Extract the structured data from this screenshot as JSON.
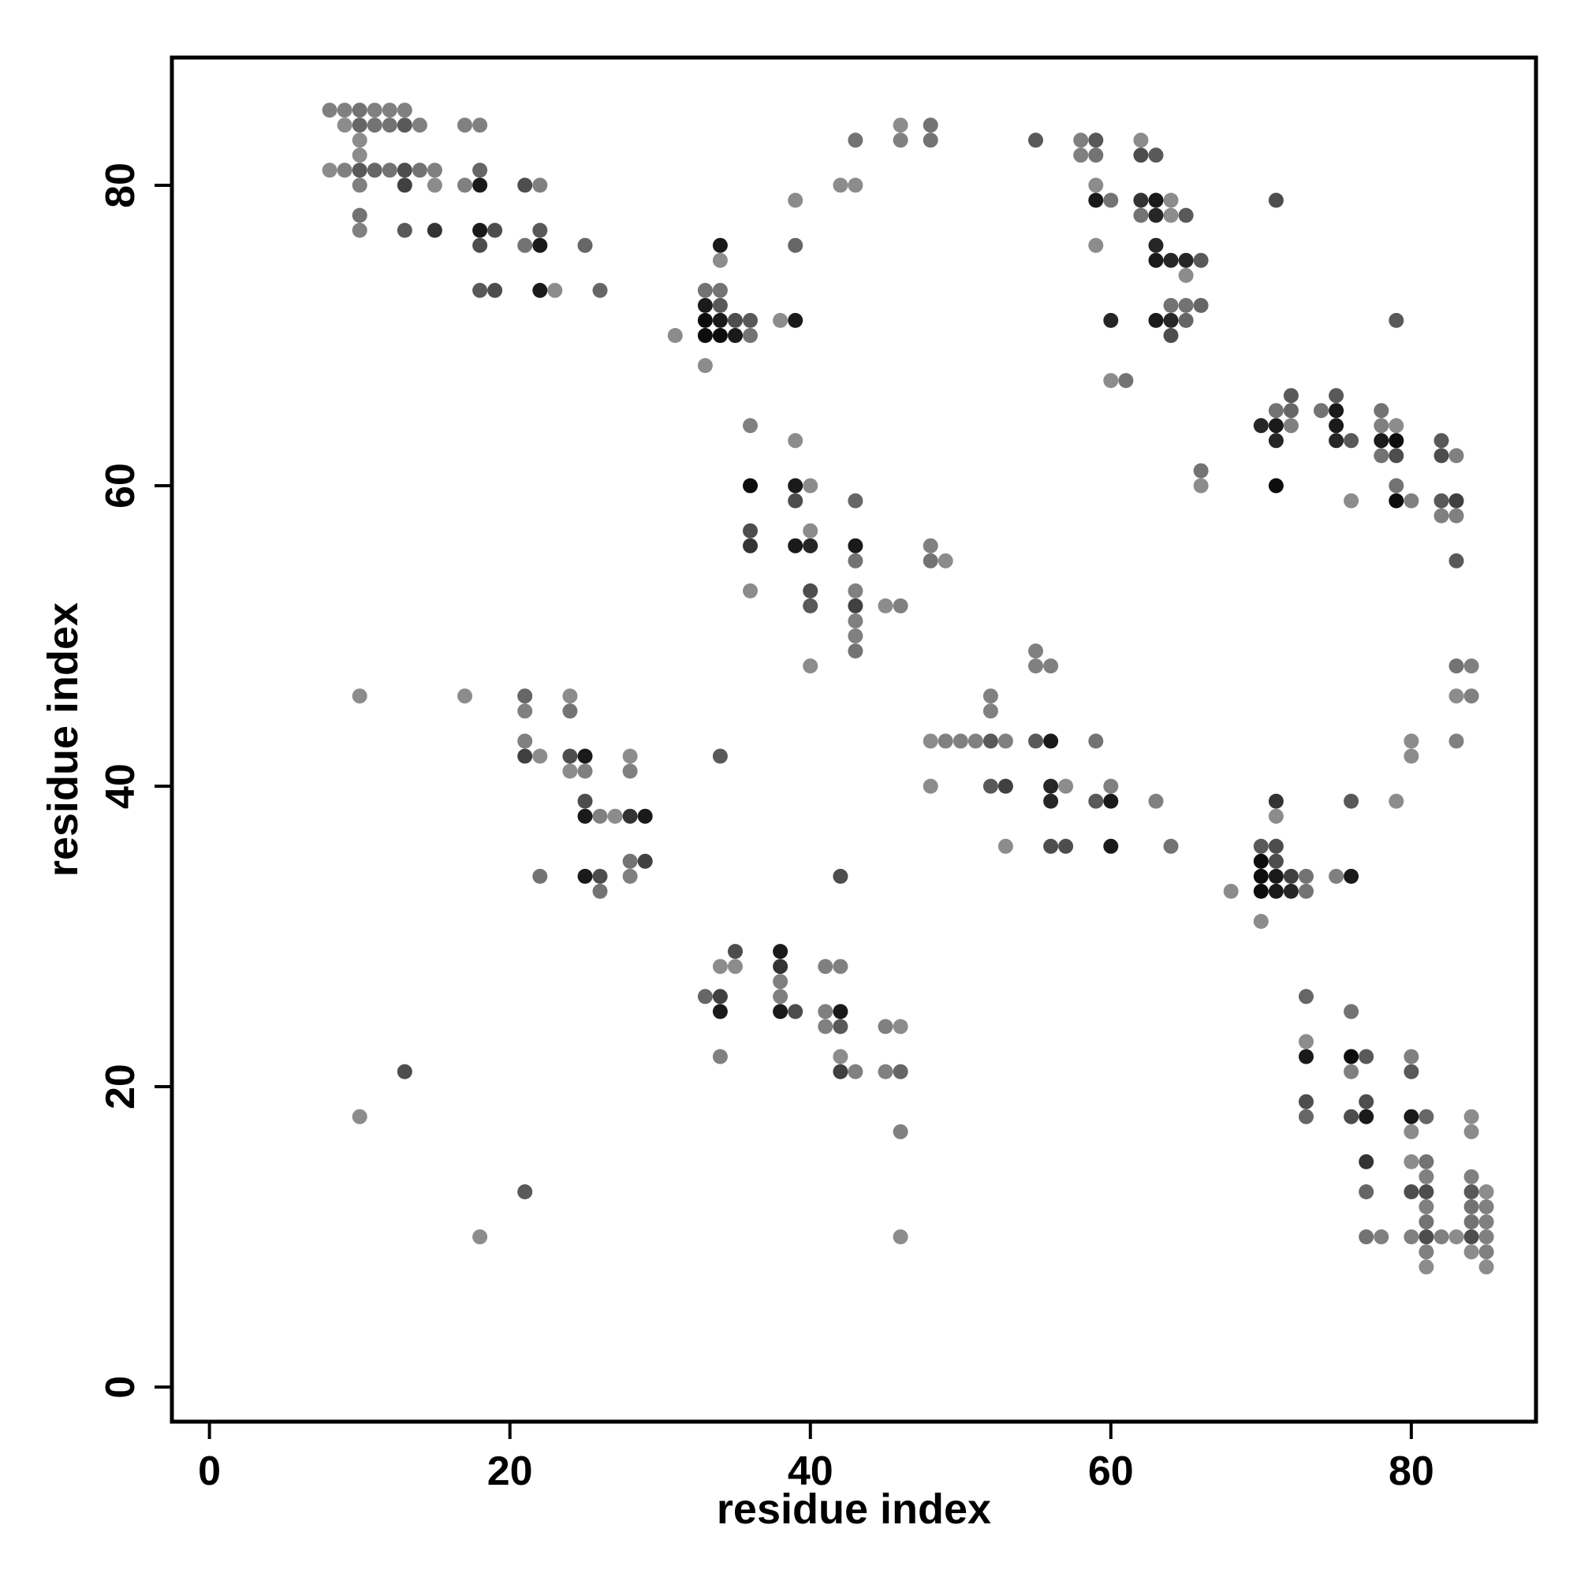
{
  "chart_data": {
    "type": "scatter",
    "title": "",
    "xlabel": "residue index",
    "ylabel": "residue index",
    "xlim": [
      -2.5,
      88.3
    ],
    "ylim": [
      -2.3,
      88.5
    ],
    "xticks": [
      0,
      20,
      40,
      60,
      80
    ],
    "yticks": [
      0,
      20,
      40,
      60,
      80
    ],
    "grid": false,
    "legend": "none",
    "color_scale": "grayscale; darker point = stronger contact",
    "points": [
      [
        8,
        85,
        0.5
      ],
      [
        9,
        85,
        0.5
      ],
      [
        10,
        85,
        0.45
      ],
      [
        11,
        85,
        0.5
      ],
      [
        12,
        85,
        0.5
      ],
      [
        13,
        85,
        0.5
      ],
      [
        9,
        84,
        0.55
      ],
      [
        10,
        84,
        0.4
      ],
      [
        11,
        84,
        0.45
      ],
      [
        12,
        84,
        0.45
      ],
      [
        13,
        84,
        0.35
      ],
      [
        14,
        84,
        0.5
      ],
      [
        17,
        84,
        0.5
      ],
      [
        18,
        84,
        0.5
      ],
      [
        10,
        83,
        0.55
      ],
      [
        10,
        82,
        0.55
      ],
      [
        8,
        81,
        0.55
      ],
      [
        9,
        81,
        0.5
      ],
      [
        10,
        81,
        0.35
      ],
      [
        11,
        81,
        0.4
      ],
      [
        12,
        81,
        0.45
      ],
      [
        13,
        81,
        0.3
      ],
      [
        14,
        81,
        0.45
      ],
      [
        15,
        81,
        0.5
      ],
      [
        18,
        81,
        0.4
      ],
      [
        10,
        80,
        0.5
      ],
      [
        13,
        80,
        0.25
      ],
      [
        15,
        80,
        0.55
      ],
      [
        17,
        80,
        0.5
      ],
      [
        18,
        80,
        0.1
      ],
      [
        21,
        80,
        0.3
      ],
      [
        22,
        80,
        0.5
      ],
      [
        10,
        78,
        0.45
      ],
      [
        10,
        77,
        0.5
      ],
      [
        13,
        77,
        0.35
      ],
      [
        15,
        77,
        0.2
      ],
      [
        18,
        77,
        0.1
      ],
      [
        19,
        77,
        0.3
      ],
      [
        22,
        77,
        0.35
      ],
      [
        18,
        76,
        0.3
      ],
      [
        21,
        76,
        0.45
      ],
      [
        22,
        76,
        0.1
      ],
      [
        25,
        76,
        0.4
      ],
      [
        18,
        73,
        0.35
      ],
      [
        19,
        73,
        0.3
      ],
      [
        22,
        73,
        0.1
      ],
      [
        23,
        73,
        0.55
      ],
      [
        26,
        73,
        0.4
      ],
      [
        10,
        46,
        0.55
      ],
      [
        17,
        46,
        0.55
      ],
      [
        21,
        46,
        0.4
      ],
      [
        24,
        46,
        0.55
      ],
      [
        21,
        45,
        0.5
      ],
      [
        24,
        45,
        0.45
      ],
      [
        21,
        43,
        0.5
      ],
      [
        21,
        42,
        0.25
      ],
      [
        22,
        42,
        0.55
      ],
      [
        24,
        42,
        0.3
      ],
      [
        25,
        42,
        0.1
      ],
      [
        28,
        42,
        0.55
      ],
      [
        24,
        41,
        0.55
      ],
      [
        25,
        41,
        0.5
      ],
      [
        28,
        41,
        0.5
      ],
      [
        25,
        39,
        0.3
      ],
      [
        25,
        38,
        0.1
      ],
      [
        26,
        38,
        0.5
      ],
      [
        27,
        38,
        0.55
      ],
      [
        28,
        38,
        0.2
      ],
      [
        29,
        38,
        0.1
      ],
      [
        28,
        35,
        0.45
      ],
      [
        29,
        35,
        0.25
      ],
      [
        22,
        34,
        0.45
      ],
      [
        25,
        34,
        0.1
      ],
      [
        26,
        34,
        0.3
      ],
      [
        28,
        34,
        0.5
      ],
      [
        26,
        33,
        0.45
      ],
      [
        13,
        21,
        0.3
      ],
      [
        10,
        18,
        0.55
      ],
      [
        21,
        13,
        0.35
      ],
      [
        18,
        10,
        0.55
      ],
      [
        31,
        70,
        0.55
      ],
      [
        33,
        73,
        0.45
      ],
      [
        34,
        73,
        0.45
      ],
      [
        33,
        72,
        0.1
      ],
      [
        34,
        72,
        0.35
      ],
      [
        33,
        71,
        0.05
      ],
      [
        34,
        71,
        0.1
      ],
      [
        35,
        71,
        0.3
      ],
      [
        36,
        71,
        0.35
      ],
      [
        38,
        71,
        0.55
      ],
      [
        39,
        71,
        0.1
      ],
      [
        33,
        70,
        0.05
      ],
      [
        34,
        70,
        0.05
      ],
      [
        35,
        70,
        0.1
      ],
      [
        36,
        70,
        0.45
      ],
      [
        33,
        68,
        0.55
      ],
      [
        34,
        76,
        0.1
      ],
      [
        34,
        75,
        0.55
      ],
      [
        39,
        76,
        0.4
      ],
      [
        39,
        79,
        0.55
      ],
      [
        36,
        64,
        0.5
      ],
      [
        39,
        63,
        0.55
      ],
      [
        36,
        60,
        0.05
      ],
      [
        39,
        60,
        0.1
      ],
      [
        40,
        60,
        0.55
      ],
      [
        39,
        59,
        0.3
      ],
      [
        36,
        57,
        0.3
      ],
      [
        40,
        57,
        0.55
      ],
      [
        36,
        56,
        0.2
      ],
      [
        39,
        56,
        0.1
      ],
      [
        40,
        56,
        0.15
      ],
      [
        43,
        59,
        0.4
      ],
      [
        43,
        56,
        0.1
      ],
      [
        43,
        55,
        0.45
      ],
      [
        48,
        56,
        0.5
      ],
      [
        48,
        55,
        0.45
      ],
      [
        49,
        55,
        0.55
      ],
      [
        36,
        53,
        0.55
      ],
      [
        40,
        53,
        0.3
      ],
      [
        43,
        53,
        0.5
      ],
      [
        40,
        52,
        0.35
      ],
      [
        43,
        52,
        0.25
      ],
      [
        45,
        52,
        0.55
      ],
      [
        46,
        52,
        0.5
      ],
      [
        43,
        51,
        0.5
      ],
      [
        43,
        50,
        0.5
      ],
      [
        43,
        49,
        0.45
      ],
      [
        40,
        48,
        0.55
      ],
      [
        42,
        80,
        0.55
      ],
      [
        43,
        80,
        0.55
      ],
      [
        43,
        83,
        0.45
      ],
      [
        46,
        84,
        0.55
      ],
      [
        48,
        84,
        0.45
      ],
      [
        46,
        83,
        0.5
      ],
      [
        48,
        83,
        0.45
      ],
      [
        34,
        42,
        0.35
      ],
      [
        34,
        28,
        0.55
      ],
      [
        35,
        29,
        0.3
      ],
      [
        35,
        28,
        0.55
      ],
      [
        38,
        29,
        0.1
      ],
      [
        38,
        28,
        0.2
      ],
      [
        38,
        27,
        0.5
      ],
      [
        38,
        26,
        0.5
      ],
      [
        33,
        26,
        0.4
      ],
      [
        34,
        26,
        0.25
      ],
      [
        34,
        25,
        0.1
      ],
      [
        38,
        25,
        0.1
      ],
      [
        39,
        25,
        0.3
      ],
      [
        34,
        22,
        0.5
      ],
      [
        41,
        28,
        0.5
      ],
      [
        42,
        28,
        0.5
      ],
      [
        41,
        25,
        0.5
      ],
      [
        42,
        25,
        0.1
      ],
      [
        41,
        24,
        0.5
      ],
      [
        42,
        24,
        0.35
      ],
      [
        42,
        22,
        0.55
      ],
      [
        42,
        21,
        0.25
      ],
      [
        43,
        21,
        0.5
      ],
      [
        42,
        34,
        0.3
      ],
      [
        45,
        24,
        0.5
      ],
      [
        46,
        24,
        0.55
      ],
      [
        45,
        21,
        0.5
      ],
      [
        46,
        21,
        0.4
      ],
      [
        46,
        17,
        0.5
      ],
      [
        46,
        10,
        0.55
      ],
      [
        55,
        83,
        0.35
      ],
      [
        58,
        83,
        0.5
      ],
      [
        59,
        83,
        0.35
      ],
      [
        58,
        82,
        0.5
      ],
      [
        59,
        82,
        0.45
      ],
      [
        59,
        80,
        0.55
      ],
      [
        59,
        79,
        0.1
      ],
      [
        60,
        79,
        0.45
      ],
      [
        59,
        76,
        0.55
      ],
      [
        62,
        83,
        0.55
      ],
      [
        62,
        82,
        0.3
      ],
      [
        63,
        82,
        0.35
      ],
      [
        62,
        79,
        0.2
      ],
      [
        63,
        79,
        0.1
      ],
      [
        64,
        79,
        0.55
      ],
      [
        62,
        78,
        0.45
      ],
      [
        63,
        78,
        0.15
      ],
      [
        64,
        78,
        0.55
      ],
      [
        65,
        78,
        0.35
      ],
      [
        63,
        76,
        0.15
      ],
      [
        63,
        75,
        0.1
      ],
      [
        64,
        75,
        0.15
      ],
      [
        65,
        75,
        0.15
      ],
      [
        66,
        75,
        0.35
      ],
      [
        65,
        74,
        0.55
      ],
      [
        64,
        72,
        0.45
      ],
      [
        65,
        72,
        0.45
      ],
      [
        66,
        72,
        0.4
      ],
      [
        60,
        71,
        0.15
      ],
      [
        63,
        71,
        0.1
      ],
      [
        64,
        71,
        0.15
      ],
      [
        65,
        71,
        0.4
      ],
      [
        64,
        70,
        0.3
      ],
      [
        60,
        67,
        0.55
      ],
      [
        61,
        67,
        0.45
      ],
      [
        71,
        79,
        0.3
      ],
      [
        66,
        61,
        0.45
      ],
      [
        66,
        60,
        0.55
      ],
      [
        70,
        64,
        0.15
      ],
      [
        71,
        65,
        0.45
      ],
      [
        72,
        66,
        0.35
      ],
      [
        71,
        64,
        0.1
      ],
      [
        72,
        65,
        0.4
      ],
      [
        72,
        64,
        0.5
      ],
      [
        71,
        63,
        0.15
      ],
      [
        71,
        60,
        0.05
      ],
      [
        74,
        65,
        0.45
      ],
      [
        75,
        66,
        0.35
      ],
      [
        75,
        65,
        0.1
      ],
      [
        75,
        64,
        0.1
      ],
      [
        75,
        63,
        0.15
      ],
      [
        76,
        63,
        0.35
      ],
      [
        76,
        59,
        0.55
      ],
      [
        78,
        65,
        0.45
      ],
      [
        78,
        64,
        0.5
      ],
      [
        79,
        64,
        0.55
      ],
      [
        78,
        63,
        0.1
      ],
      [
        79,
        63,
        0.05
      ],
      [
        78,
        62,
        0.45
      ],
      [
        79,
        62,
        0.3
      ],
      [
        79,
        71,
        0.35
      ],
      [
        79,
        60,
        0.45
      ],
      [
        79,
        59,
        0.05
      ],
      [
        80,
        59,
        0.5
      ],
      [
        82,
        63,
        0.35
      ],
      [
        82,
        62,
        0.3
      ],
      [
        83,
        62,
        0.5
      ],
      [
        82,
        59,
        0.35
      ],
      [
        83,
        59,
        0.25
      ],
      [
        82,
        58,
        0.5
      ],
      [
        83,
        58,
        0.5
      ],
      [
        83,
        55,
        0.35
      ],
      [
        83,
        48,
        0.45
      ],
      [
        84,
        48,
        0.5
      ],
      [
        83,
        46,
        0.55
      ],
      [
        84,
        46,
        0.5
      ],
      [
        83,
        43,
        0.5
      ],
      [
        80,
        43,
        0.55
      ],
      [
        80,
        42,
        0.55
      ],
      [
        79,
        39,
        0.55
      ],
      [
        52,
        46,
        0.5
      ],
      [
        52,
        45,
        0.5
      ],
      [
        55,
        49,
        0.5
      ],
      [
        55,
        48,
        0.5
      ],
      [
        56,
        48,
        0.5
      ],
      [
        48,
        43,
        0.55
      ],
      [
        49,
        43,
        0.5
      ],
      [
        50,
        43,
        0.5
      ],
      [
        51,
        43,
        0.5
      ],
      [
        52,
        43,
        0.35
      ],
      [
        53,
        43,
        0.5
      ],
      [
        55,
        43,
        0.35
      ],
      [
        56,
        43,
        0.1
      ],
      [
        59,
        43,
        0.45
      ],
      [
        48,
        40,
        0.55
      ],
      [
        52,
        40,
        0.35
      ],
      [
        53,
        40,
        0.25
      ],
      [
        56,
        40,
        0.15
      ],
      [
        57,
        40,
        0.55
      ],
      [
        60,
        40,
        0.5
      ],
      [
        56,
        39,
        0.15
      ],
      [
        59,
        39,
        0.35
      ],
      [
        60,
        39,
        0.1
      ],
      [
        63,
        39,
        0.5
      ],
      [
        53,
        36,
        0.55
      ],
      [
        56,
        36,
        0.3
      ],
      [
        57,
        36,
        0.3
      ],
      [
        60,
        36,
        0.1
      ],
      [
        64,
        36,
        0.45
      ],
      [
        68,
        33,
        0.55
      ],
      [
        70,
        31,
        0.55
      ],
      [
        70,
        36,
        0.35
      ],
      [
        71,
        36,
        0.3
      ],
      [
        70,
        35,
        0.05
      ],
      [
        71,
        35,
        0.3
      ],
      [
        70,
        34,
        0.05
      ],
      [
        71,
        34,
        0.1
      ],
      [
        72,
        34,
        0.25
      ],
      [
        73,
        34,
        0.45
      ],
      [
        75,
        34,
        0.5
      ],
      [
        76,
        34,
        0.1
      ],
      [
        70,
        33,
        0.05
      ],
      [
        71,
        33,
        0.1
      ],
      [
        72,
        33,
        0.15
      ],
      [
        73,
        33,
        0.45
      ],
      [
        71,
        39,
        0.2
      ],
      [
        71,
        38,
        0.55
      ],
      [
        76,
        39,
        0.35
      ],
      [
        73,
        26,
        0.4
      ],
      [
        73,
        23,
        0.55
      ],
      [
        73,
        22,
        0.1
      ],
      [
        76,
        25,
        0.45
      ],
      [
        76,
        22,
        0.05
      ],
      [
        77,
        22,
        0.35
      ],
      [
        76,
        21,
        0.5
      ],
      [
        73,
        19,
        0.3
      ],
      [
        73,
        18,
        0.4
      ],
      [
        76,
        18,
        0.3
      ],
      [
        77,
        19,
        0.3
      ],
      [
        77,
        18,
        0.1
      ],
      [
        77,
        15,
        0.2
      ],
      [
        77,
        13,
        0.4
      ],
      [
        77,
        10,
        0.45
      ],
      [
        78,
        10,
        0.5
      ],
      [
        80,
        22,
        0.5
      ],
      [
        80,
        21,
        0.35
      ],
      [
        80,
        18,
        0.1
      ],
      [
        81,
        18,
        0.4
      ],
      [
        80,
        17,
        0.55
      ],
      [
        80,
        15,
        0.55
      ],
      [
        81,
        15,
        0.45
      ],
      [
        81,
        14,
        0.5
      ],
      [
        80,
        13,
        0.3
      ],
      [
        81,
        13,
        0.3
      ],
      [
        81,
        12,
        0.5
      ],
      [
        81,
        11,
        0.45
      ],
      [
        80,
        10,
        0.5
      ],
      [
        81,
        10,
        0.3
      ],
      [
        82,
        10,
        0.5
      ],
      [
        83,
        10,
        0.55
      ],
      [
        81,
        9,
        0.5
      ],
      [
        81,
        8,
        0.55
      ],
      [
        84,
        18,
        0.55
      ],
      [
        84,
        17,
        0.55
      ],
      [
        84,
        14,
        0.5
      ],
      [
        84,
        13,
        0.35
      ],
      [
        85,
        13,
        0.55
      ],
      [
        84,
        12,
        0.45
      ],
      [
        85,
        12,
        0.5
      ],
      [
        84,
        11,
        0.45
      ],
      [
        85,
        11,
        0.5
      ],
      [
        84,
        10,
        0.3
      ],
      [
        85,
        10,
        0.5
      ],
      [
        84,
        9,
        0.55
      ],
      [
        85,
        9,
        0.5
      ],
      [
        85,
        8,
        0.55
      ]
    ]
  }
}
